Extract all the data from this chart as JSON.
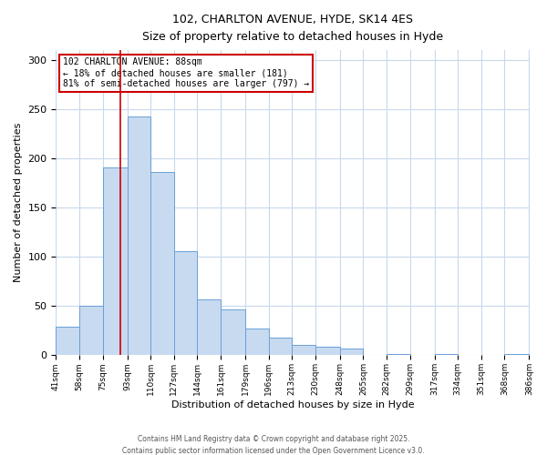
{
  "title1": "102, CHARLTON AVENUE, HYDE, SK14 4ES",
  "title2": "Size of property relative to detached houses in Hyde",
  "xlabel": "Distribution of detached houses by size in Hyde",
  "ylabel": "Number of detached properties",
  "all_values": [
    29,
    50,
    191,
    243,
    186,
    106,
    57,
    47,
    27,
    18,
    11,
    9,
    7,
    0,
    1,
    0,
    1,
    0,
    0,
    1
  ],
  "categories": [
    "41sqm",
    "58sqm",
    "75sqm",
    "93sqm",
    "110sqm",
    "127sqm",
    "144sqm",
    "161sqm",
    "179sqm",
    "196sqm",
    "213sqm",
    "230sqm",
    "248sqm",
    "265sqm",
    "282sqm",
    "299sqm",
    "317sqm",
    "334sqm",
    "351sqm",
    "368sqm",
    "386sqm"
  ],
  "bin_edges": [
    41,
    58,
    75,
    93,
    110,
    127,
    144,
    161,
    179,
    196,
    213,
    230,
    248,
    265,
    282,
    299,
    317,
    334,
    351,
    368,
    386
  ],
  "bar_color": "#c8daf0",
  "bar_edge_color": "#6aa0d8",
  "vline_x": 88,
  "vline_color": "#cc0000",
  "ylim": [
    0,
    310
  ],
  "yticks": [
    0,
    50,
    100,
    150,
    200,
    250,
    300
  ],
  "annotation_title": "102 CHARLTON AVENUE: 88sqm",
  "annotation_line1": "← 18% of detached houses are smaller (181)",
  "annotation_line2": "81% of semi-detached houses are larger (797) →",
  "annotation_box_color": "#ffffff",
  "annotation_box_edgecolor": "#cc0000",
  "footer1": "Contains HM Land Registry data © Crown copyright and database right 2025.",
  "footer2": "Contains public sector information licensed under the Open Government Licence v3.0.",
  "background_color": "#ffffff",
  "grid_color": "#c8d8ec"
}
